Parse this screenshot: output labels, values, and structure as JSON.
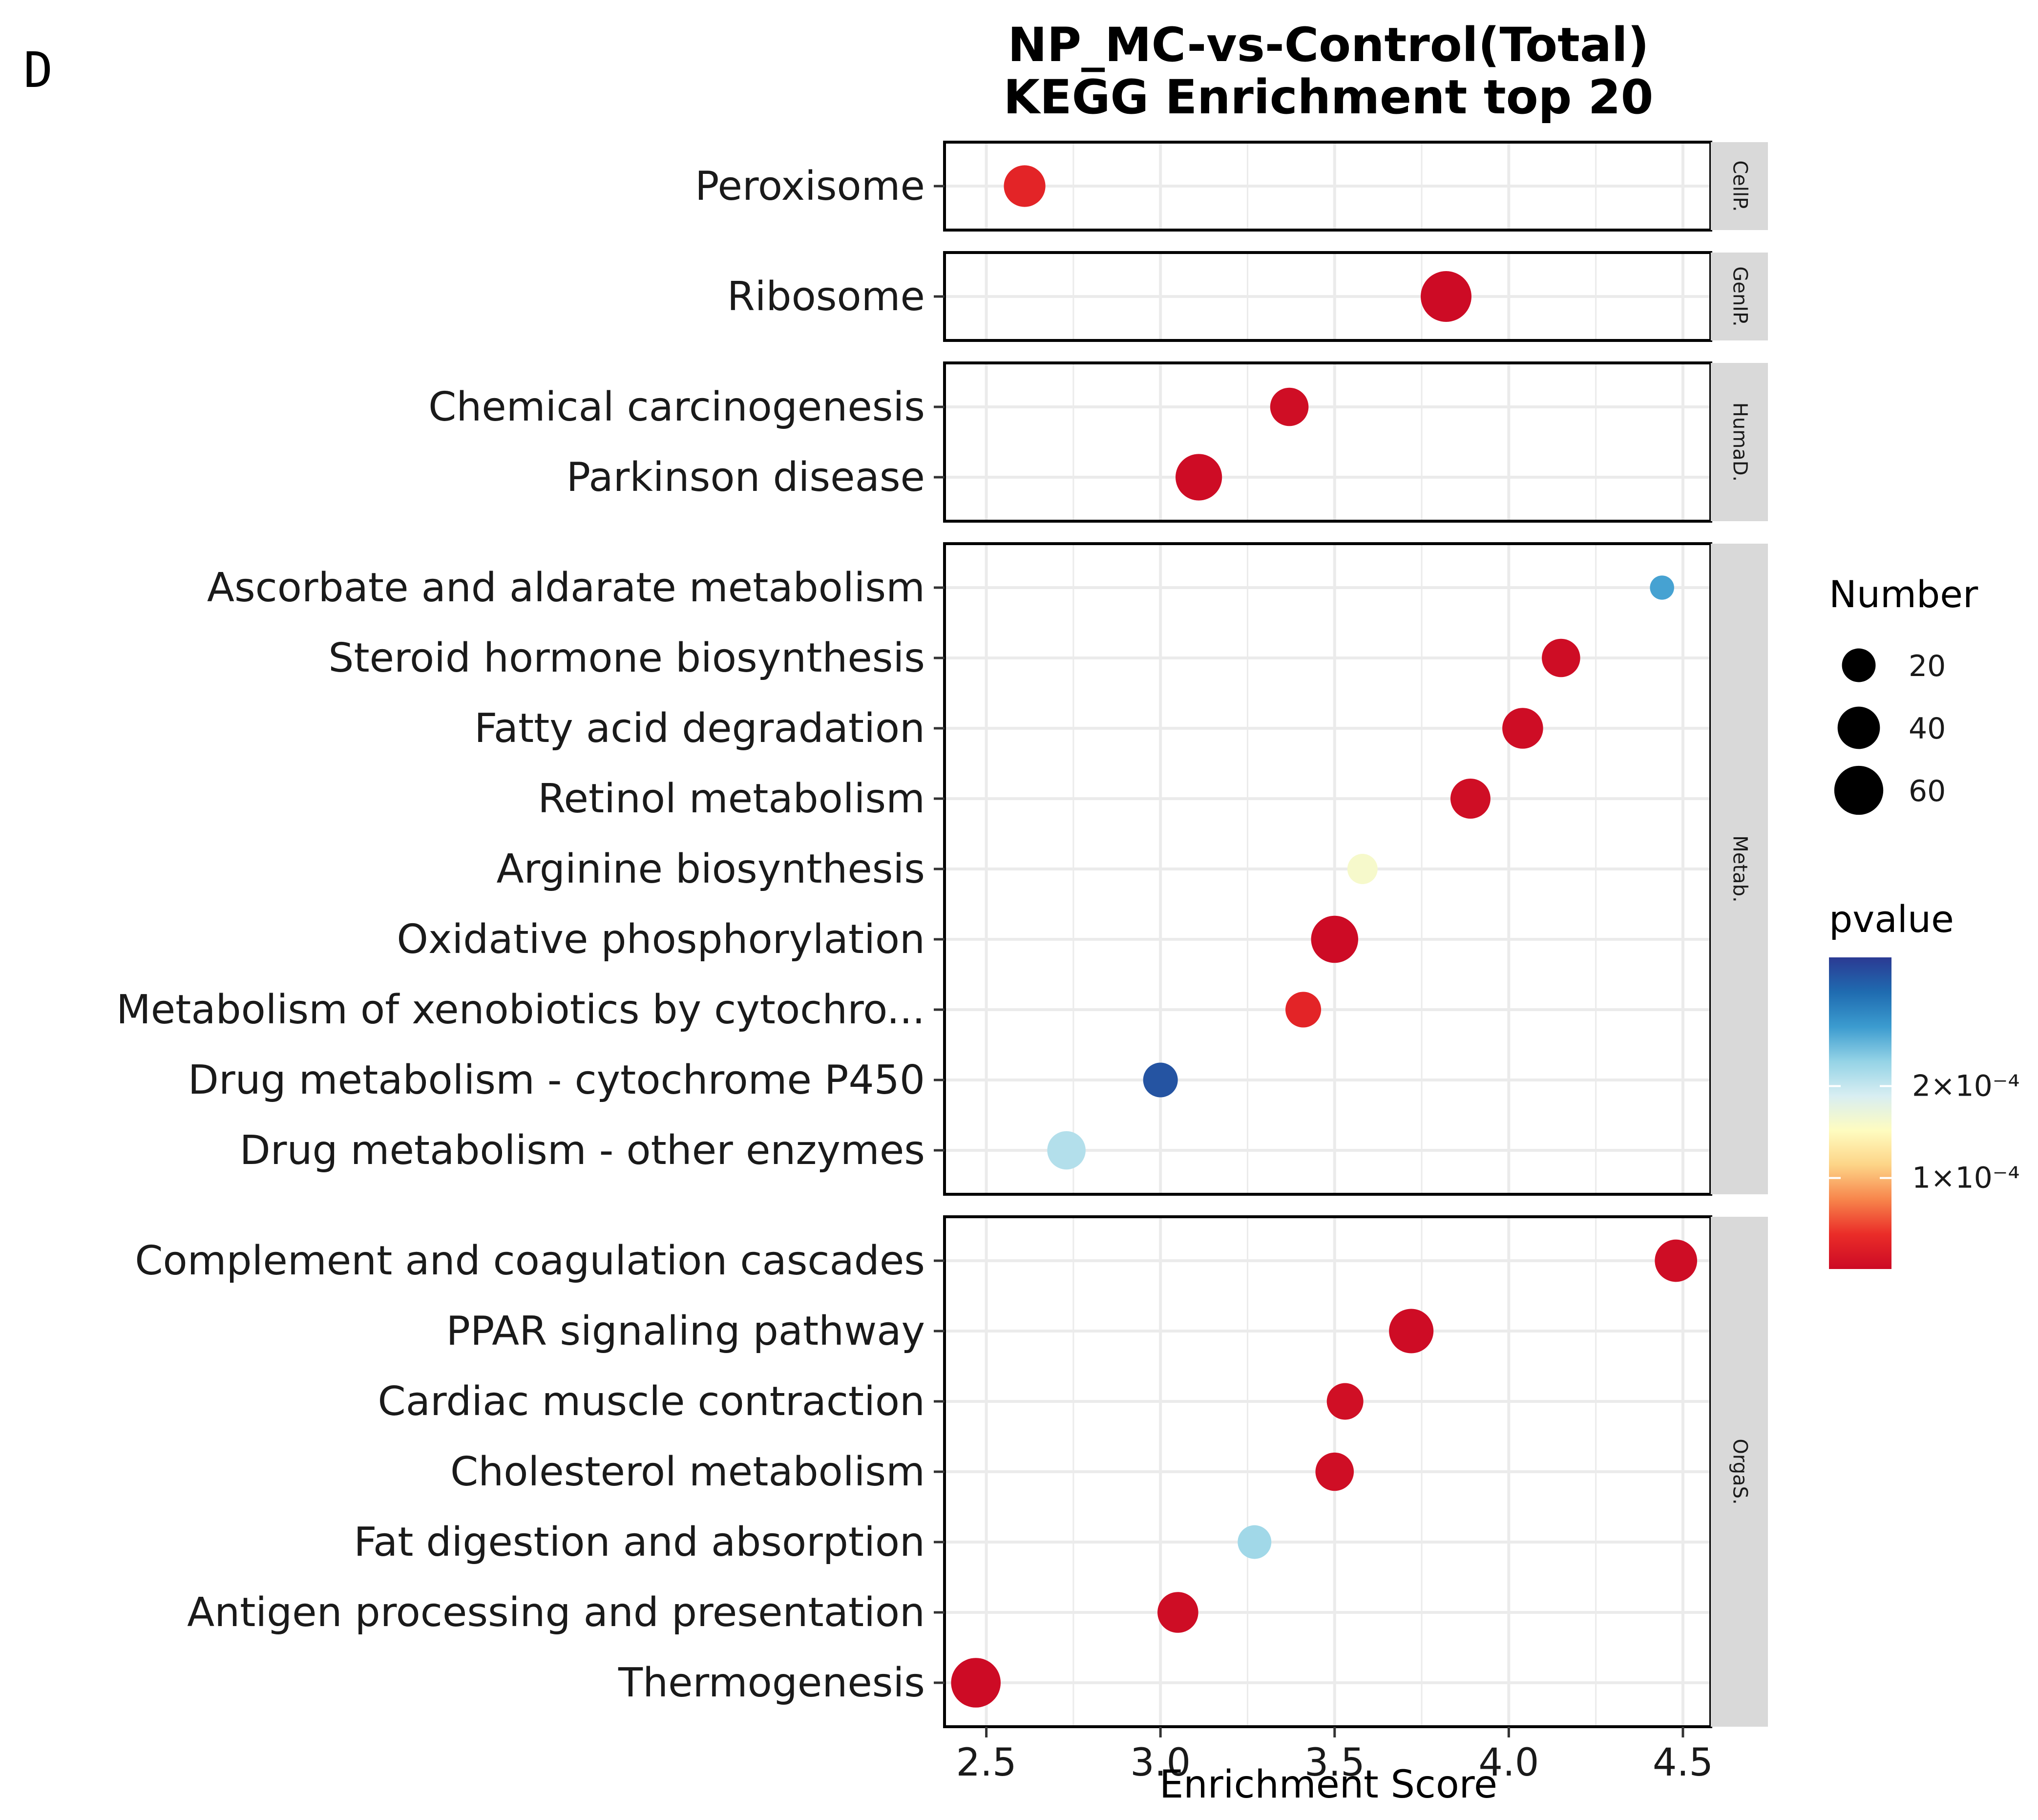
{
  "corner_label": "D",
  "chart_data": {
    "type": "scatter",
    "title": [
      "NP_MC-vs-Control(Total)",
      "KEGG Enrichment top 20"
    ],
    "xlabel": "Enrichment Score",
    "xlim": [
      2.38,
      4.58
    ],
    "xticks": [
      2.5,
      3.0,
      3.5,
      4.0,
      4.5
    ],
    "xtick_labels": [
      "2.5",
      "3.0",
      "3.5",
      "4.0",
      "4.5"
    ],
    "grid": true,
    "facets": [
      {
        "strip": "CellP.",
        "terms": [
          {
            "term": "Peroxisome",
            "x": 2.61,
            "number": 38,
            "pvalue": 3e-05
          }
        ]
      },
      {
        "strip": "GenIP.",
        "terms": [
          {
            "term": "Ribosome",
            "x": 3.82,
            "number": 66,
            "pvalue": 2e-06
          }
        ]
      },
      {
        "strip": "HumaD.",
        "terms": [
          {
            "term": "Chemical carcinogenesis",
            "x": 3.37,
            "number": 30,
            "pvalue": 5e-06
          },
          {
            "term": "Parkinson disease",
            "x": 3.11,
            "number": 52,
            "pvalue": 3e-06
          }
        ]
      },
      {
        "strip": "Metab.",
        "terms": [
          {
            "term": "Ascorbate and aldarate metabolism",
            "x": 4.44,
            "number": 6,
            "pvalue": 0.00026
          },
          {
            "term": "Steroid hormone biosynthesis",
            "x": 4.15,
            "number": 30,
            "pvalue": 4e-06
          },
          {
            "term": "Fatty acid degradation",
            "x": 4.04,
            "number": 36,
            "pvalue": 4e-06
          },
          {
            "term": "Retinol metabolism",
            "x": 3.89,
            "number": 34,
            "pvalue": 5e-06
          },
          {
            "term": "Arginine biosynthesis",
            "x": 3.58,
            "number": 14,
            "pvalue": 0.00016
          },
          {
            "term": "Oxidative phosphorylation",
            "x": 3.5,
            "number": 54,
            "pvalue": 2e-06
          },
          {
            "term": "Metabolism of xenobiotics by cytochro...",
            "x": 3.41,
            "number": 24,
            "pvalue": 3e-05
          },
          {
            "term": "Drug metabolism - cytochrome P450",
            "x": 3.0,
            "number": 22,
            "pvalue": 0.00032
          },
          {
            "term": "Drug metabolism - other enzymes",
            "x": 2.73,
            "number": 30,
            "pvalue": 0.00021
          }
        ]
      },
      {
        "strip": "OrgaS.",
        "terms": [
          {
            "term": "Complement and coagulation cascades",
            "x": 4.48,
            "number": 40,
            "pvalue": 4e-06
          },
          {
            "term": "PPAR signaling pathway",
            "x": 3.72,
            "number": 46,
            "pvalue": 3e-06
          },
          {
            "term": "Cardiac muscle contraction",
            "x": 3.53,
            "number": 26,
            "pvalue": 6e-06
          },
          {
            "term": "Cholesterol metabolism",
            "x": 3.5,
            "number": 30,
            "pvalue": 5e-06
          },
          {
            "term": "Fat digestion and absorption",
            "x": 3.27,
            "number": 20,
            "pvalue": 0.00022
          },
          {
            "term": "Antigen processing and presentation",
            "x": 3.05,
            "number": 36,
            "pvalue": 4e-06
          },
          {
            "term": "Thermogenesis",
            "x": 2.47,
            "number": 62,
            "pvalue": 2e-06
          }
        ]
      }
    ],
    "size_legend": {
      "title": "Number",
      "values": [
        20,
        40,
        60
      ],
      "labels": [
        "20",
        "40",
        "60"
      ]
    },
    "color_legend": {
      "title": "pvalue",
      "range": [
        1e-06,
        0.00034
      ],
      "ticks": [
        0.0002,
        0.0001
      ],
      "tick_labels": [
        "2×10⁻⁴",
        "1×10⁻⁴"
      ],
      "colors": [
        "#cc0a25",
        "#ea2c28",
        "#f7844b",
        "#fdd487",
        "#fefcc0",
        "#d8eef2",
        "#94d3e6",
        "#3b9bcf",
        "#1f6bb0",
        "#2b3a93"
      ]
    }
  }
}
